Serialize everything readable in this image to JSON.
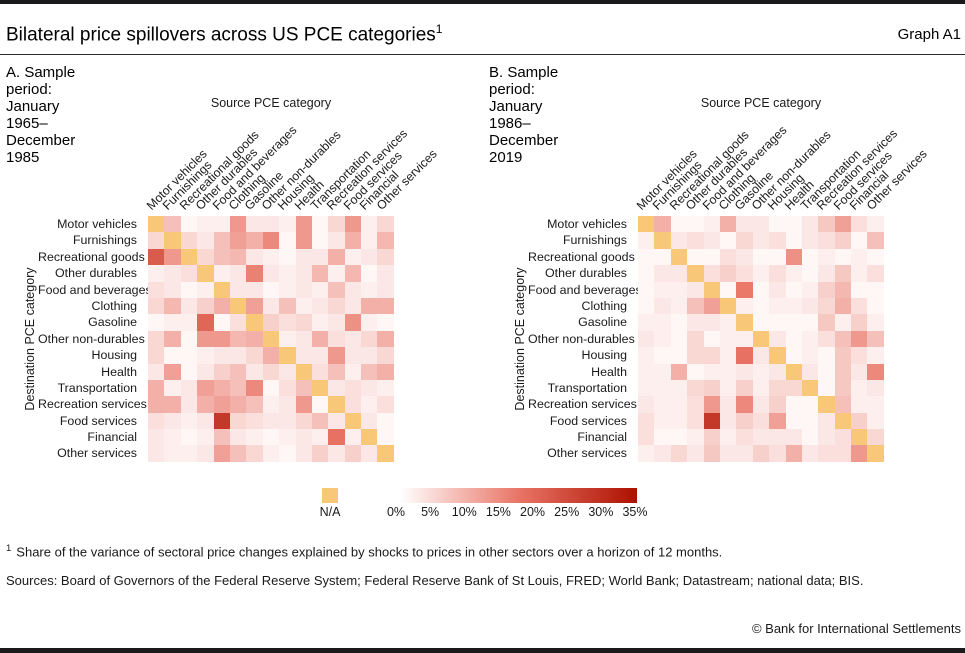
{
  "page": {
    "title": "Bilateral price spillovers across US PCE categories",
    "title_superscript": "1",
    "graph_label": "Graph A1",
    "footnote_marker": "1",
    "footnote": "Share of the variance of sectoral price changes explained by shocks to prices in other sectors over a horizon of 12 months.",
    "sources": "Sources: Board of Governors of the Federal Reserve System; Federal Reserve Bank of St Louis, FRED; World Bank; Datastream; national data; BIS.",
    "copyright": "© Bank for International Settlements"
  },
  "axis": {
    "source_label": "Source PCE category",
    "destination_label": "Destination PCE category"
  },
  "panels": [
    {
      "id": "A",
      "title": "A. Sample period: January 1965–December 1985"
    },
    {
      "id": "B",
      "title": "B. Sample period: January 1986–December 2019"
    }
  ],
  "legend": {
    "na_label": "N/A",
    "na_color": "#f9c778",
    "ticks": [
      "0%",
      "5%",
      "10%",
      "15%",
      "20%",
      "25%",
      "30%",
      "35%"
    ],
    "min": 0,
    "max": 35,
    "gradient_stops": [
      "#ffffff",
      "#e97566",
      "#ac1000"
    ],
    "position": "bottom-center"
  },
  "chart_data": [
    {
      "type": "heatmap",
      "panel": "A",
      "title": "A. Sample period: January 1965–December 1985",
      "unit": "percent",
      "scale_min": 0,
      "scale_max": 35,
      "na_diagonal": true,
      "xlabel": "Source PCE category",
      "ylabel": "Destination PCE category",
      "categories": [
        "Motor vehicles",
        "Furnishings",
        "Recreational goods",
        "Other durables",
        "Food and beverages",
        "Clothing",
        "Gasoline",
        "Other non-durables",
        "Housing",
        "Health",
        "Transportation",
        "Recreation services",
        "Food services",
        "Financial",
        "Other services"
      ],
      "matrix": [
        [
          null,
          8,
          1,
          2,
          2,
          13,
          3,
          3,
          2,
          13,
          1,
          5,
          13,
          2,
          5
        ],
        [
          5,
          null,
          5,
          3,
          8,
          12,
          10,
          15,
          1,
          13,
          1,
          3,
          10,
          2,
          9
        ],
        [
          22,
          13,
          null,
          5,
          8,
          9,
          3,
          2,
          1,
          3,
          3,
          10,
          2,
          3,
          5
        ],
        [
          2,
          3,
          4,
          null,
          2,
          3,
          16,
          3,
          2,
          3,
          9,
          2,
          9,
          1,
          3
        ],
        [
          4,
          3,
          1,
          2,
          null,
          3,
          3,
          1,
          2,
          3,
          2,
          8,
          3,
          2,
          3
        ],
        [
          5,
          9,
          3,
          6,
          10,
          null,
          12,
          3,
          8,
          2,
          3,
          5,
          3,
          10,
          10
        ],
        [
          1,
          2,
          2,
          20,
          1,
          4,
          null,
          6,
          4,
          5,
          2,
          3,
          14,
          2,
          1
        ],
        [
          5,
          10,
          1,
          13,
          13,
          9,
          10,
          null,
          2,
          3,
          10,
          4,
          3,
          5,
          10
        ],
        [
          5,
          1,
          1,
          2,
          3,
          3,
          5,
          10,
          null,
          3,
          3,
          13,
          3,
          3,
          5
        ],
        [
          3,
          12,
          1,
          3,
          6,
          8,
          3,
          5,
          3,
          null,
          4,
          8,
          2,
          8,
          10
        ],
        [
          10,
          2,
          3,
          12,
          10,
          8,
          15,
          1,
          4,
          8,
          null,
          3,
          4,
          3,
          2
        ],
        [
          10,
          10,
          3,
          10,
          12,
          10,
          8,
          2,
          3,
          13,
          1,
          null,
          4,
          2,
          4
        ],
        [
          4,
          3,
          2,
          3,
          28,
          5,
          4,
          3,
          3,
          5,
          8,
          3,
          null,
          3,
          1
        ],
        [
          3,
          2,
          1,
          2,
          8,
          3,
          2,
          1,
          2,
          3,
          2,
          18,
          2,
          null,
          1
        ],
        [
          3,
          2,
          2,
          3,
          12,
          8,
          5,
          2,
          1,
          3,
          6,
          3,
          6,
          3,
          null
        ]
      ]
    },
    {
      "type": "heatmap",
      "panel": "B",
      "title": "B. Sample period: January 1986–December 2019",
      "unit": "percent",
      "scale_min": 0,
      "scale_max": 35,
      "na_diagonal": true,
      "xlabel": "Source PCE category",
      "ylabel": "Destination PCE category",
      "categories": [
        "Motor vehicles",
        "Furnishings",
        "Recreational goods",
        "Other durables",
        "Food and beverages",
        "Clothing",
        "Gasoline",
        "Other non-durables",
        "Housing",
        "Health",
        "Transportation",
        "Recreation services",
        "Food services",
        "Financial",
        "Other services"
      ],
      "matrix": [
        [
          null,
          10,
          1,
          1,
          2,
          10,
          3,
          3,
          1,
          1,
          3,
          7,
          12,
          4,
          2
        ],
        [
          2,
          null,
          3,
          4,
          3,
          1,
          5,
          3,
          4,
          1,
          3,
          4,
          6,
          1,
          8
        ],
        [
          1,
          1,
          null,
          1,
          1,
          4,
          3,
          1,
          1,
          14,
          1,
          2,
          1,
          2,
          1
        ],
        [
          1,
          3,
          3,
          null,
          4,
          6,
          4,
          2,
          4,
          2,
          1,
          3,
          7,
          2,
          4
        ],
        [
          1,
          2,
          2,
          3,
          null,
          1,
          17,
          1,
          3,
          1,
          2,
          6,
          9,
          1,
          1
        ],
        [
          1,
          3,
          2,
          8,
          12,
          null,
          2,
          1,
          2,
          2,
          3,
          5,
          10,
          4,
          1
        ],
        [
          2,
          2,
          1,
          3,
          3,
          2,
          null,
          1,
          1,
          1,
          1,
          7,
          2,
          6,
          2
        ],
        [
          3,
          2,
          1,
          5,
          1,
          2,
          2,
          null,
          3,
          1,
          2,
          4,
          8,
          13,
          8
        ],
        [
          2,
          1,
          1,
          5,
          5,
          2,
          18,
          3,
          null,
          1,
          2,
          1,
          7,
          4,
          2
        ],
        [
          2,
          2,
          10,
          1,
          2,
          2,
          3,
          2,
          3,
          null,
          3,
          1,
          7,
          3,
          15
        ],
        [
          2,
          2,
          2,
          5,
          6,
          2,
          6,
          2,
          5,
          5,
          null,
          1,
          7,
          2,
          3
        ],
        [
          3,
          2,
          2,
          4,
          13,
          3,
          15,
          3,
          6,
          1,
          1,
          null,
          8,
          2,
          2
        ],
        [
          4,
          2,
          2,
          4,
          28,
          3,
          6,
          4,
          12,
          1,
          1,
          3,
          null,
          6,
          2
        ],
        [
          4,
          1,
          1,
          2,
          6,
          2,
          4,
          3,
          3,
          3,
          1,
          3,
          4,
          null,
          5
        ],
        [
          2,
          3,
          5,
          3,
          7,
          3,
          3,
          6,
          4,
          10,
          3,
          4,
          4,
          13,
          null
        ]
      ]
    }
  ]
}
